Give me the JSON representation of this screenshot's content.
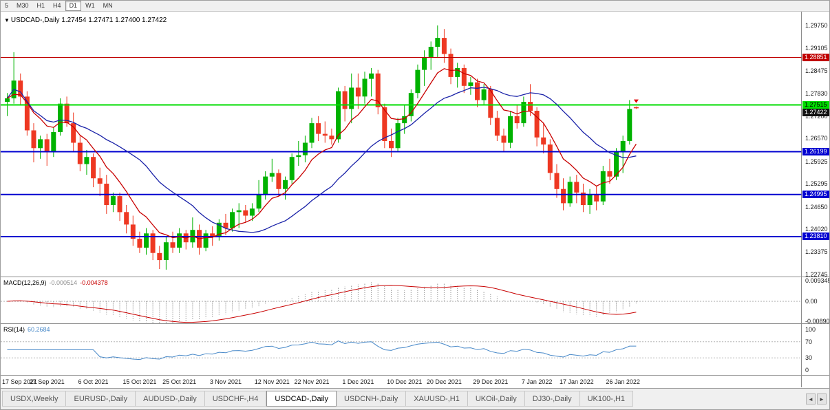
{
  "colors": {
    "candle_up": "#00b200",
    "candle_down": "#ee3822",
    "ma_fast": "#c80000",
    "ma_slow": "#1a22a8",
    "macd_hist": "#9a9a9a",
    "macd_signal": "#c80000",
    "rsi_line": "#4788c8",
    "level_red": "#c00000",
    "level_green": "#00dd00",
    "level_blue": "#0000d0",
    "bid_tag_bg": "#101010",
    "divider": "#8c8c8c",
    "dashed_level": "#b5b5b5"
  },
  "toolbar": {
    "buttons": [
      {
        "label": "5",
        "active": false
      },
      {
        "label": "M30",
        "active": false
      },
      {
        "label": "H1",
        "active": false
      },
      {
        "label": "H4",
        "active": false
      },
      {
        "label": "D1",
        "active": true
      },
      {
        "label": "W1",
        "active": false
      },
      {
        "label": "MN",
        "active": false
      }
    ]
  },
  "header": {
    "dropdown_glyph": "▼",
    "symbol": "USDCAD-,Daily",
    "ohlc": "1.27454 1.27471 1.27400 1.27422"
  },
  "macd_panel": {
    "title": "MACD(12,26,9)",
    "main_value": "-0.000514",
    "signal_value": "-0.004378",
    "scale": [
      "0.009345",
      "0.00",
      "-0.008900"
    ]
  },
  "rsi_panel": {
    "title": "RSI(14)",
    "value": "60.2684",
    "scale": [
      "100",
      "70",
      "30",
      "0"
    ],
    "levels": [
      70,
      30
    ]
  },
  "price_levels": [
    {
      "label": "1.28851",
      "price": 1.28851,
      "bg": "#c00000",
      "fg": "#ffffff",
      "line": true,
      "width": 1,
      "color": "#c00000"
    },
    {
      "label": "1.27515",
      "price": 1.27515,
      "bg": "#00dd00",
      "fg": "#000000",
      "line": true,
      "width": 2,
      "color": "#00dd00"
    },
    {
      "label": "1.27422",
      "price": 1.27422,
      "bg": "#101010",
      "fg": "#ffffff",
      "line": false,
      "width": 0,
      "color": "#101010"
    },
    {
      "label": "1.26199",
      "price": 1.26199,
      "bg": "#0000d0",
      "fg": "#ffffff",
      "line": true,
      "width": 2,
      "color": "#0000d0"
    },
    {
      "label": "1.24995",
      "price": 1.24995,
      "bg": "#0000d0",
      "fg": "#ffffff",
      "line": true,
      "width": 2,
      "color": "#0000d0"
    },
    {
      "label": "1.23810",
      "price": 1.2381,
      "bg": "#0000d0",
      "fg": "#ffffff",
      "line": true,
      "width": 2,
      "color": "#0000d0"
    }
  ],
  "price_scale_labels": [
    "1.29750",
    "1.29105",
    "1.28475",
    "1.27830",
    "1.27200",
    "1.26570",
    "1.25925",
    "1.25295",
    "1.24650",
    "1.24020",
    "1.23375",
    "1.22745"
  ],
  "tabs": [
    {
      "label": "USDX,Weekly",
      "active": false
    },
    {
      "label": "EURUSD-,Daily",
      "active": false
    },
    {
      "label": "AUDUSD-,Daily",
      "active": false
    },
    {
      "label": "USDCHF-,H4",
      "active": false
    },
    {
      "label": "USDCAD-,Daily",
      "active": true
    },
    {
      "label": "USDCNH-,Daily",
      "active": false
    },
    {
      "label": "XAUUSD-,H1",
      "active": false
    },
    {
      "label": "UKOil-,Daily",
      "active": false
    },
    {
      "label": "DJ30-,Daily",
      "active": false
    },
    {
      "label": "UK100-,H1",
      "active": false
    }
  ],
  "tab_scroll": {
    "left_glyph": "◄",
    "right_glyph": "►"
  },
  "chart_data": {
    "type": "candlestick",
    "title": "USDCAD-,Daily",
    "symbol": "USDCAD-",
    "timeframe": "Daily",
    "current_bar": {
      "open": 1.27454,
      "high": 1.27471,
      "low": 1.274,
      "close": 1.27422
    },
    "y_axis_labels": [
      1.2975,
      1.29105,
      1.28475,
      1.2783,
      1.272,
      1.2657,
      1.25925,
      1.25295,
      1.2465,
      1.2402,
      1.23375,
      1.22745
    ],
    "x_tick_labels": [
      "17 Sep 2021",
      "27 Sep 2021",
      "6 Oct 2021",
      "15 Oct 2021",
      "25 Oct 2021",
      "3 Nov 2021",
      "12 Nov 2021",
      "22 Nov 2021",
      "1 Dec 2021",
      "10 Dec 2021",
      "20 Dec 2021",
      "29 Dec 2021",
      "7 Jan 2022",
      "17 Jan 2022",
      "26 Jan 2022"
    ],
    "x_tick_indices": [
      0,
      6,
      13,
      20,
      26,
      33,
      40,
      46,
      53,
      60,
      66,
      73,
      80,
      86,
      93
    ],
    "candles": [
      [
        1.276,
        1.2785,
        1.272,
        1.277
      ],
      [
        1.277,
        1.29,
        1.2755,
        1.282
      ],
      [
        1.282,
        1.284,
        1.275,
        1.2775
      ],
      [
        1.2775,
        1.279,
        1.2665,
        1.268
      ],
      [
        1.268,
        1.27,
        1.259,
        1.263
      ],
      [
        1.263,
        1.2665,
        1.26,
        1.2655
      ],
      [
        1.2655,
        1.267,
        1.258,
        1.262
      ],
      [
        1.262,
        1.269,
        1.2605,
        1.2675
      ],
      [
        1.2675,
        1.277,
        1.2665,
        1.2755
      ],
      [
        1.2755,
        1.2775,
        1.269,
        1.27
      ],
      [
        1.27,
        1.273,
        1.262,
        1.2645
      ],
      [
        1.2645,
        1.2665,
        1.2565,
        1.2585
      ],
      [
        1.2585,
        1.2625,
        1.2555,
        1.2605
      ],
      [
        1.2605,
        1.2615,
        1.252,
        1.2545
      ],
      [
        1.2545,
        1.2575,
        1.2495,
        1.253
      ],
      [
        1.253,
        1.2555,
        1.2445,
        1.247
      ],
      [
        1.247,
        1.2505,
        1.245,
        1.2495
      ],
      [
        1.2495,
        1.2505,
        1.2425,
        1.245
      ],
      [
        1.245,
        1.247,
        1.239,
        1.2415
      ],
      [
        1.2415,
        1.244,
        1.2355,
        1.2375
      ],
      [
        1.2375,
        1.2395,
        1.2335,
        1.235
      ],
      [
        1.235,
        1.2405,
        1.233,
        1.239
      ],
      [
        1.239,
        1.24,
        1.2315,
        1.2335
      ],
      [
        1.2335,
        1.2355,
        1.229,
        1.2315
      ],
      [
        1.2315,
        1.238,
        1.2288,
        1.2365
      ],
      [
        1.2365,
        1.2395,
        1.2335,
        1.235
      ],
      [
        1.235,
        1.2405,
        1.2335,
        1.239
      ],
      [
        1.239,
        1.24,
        1.2345,
        1.2365
      ],
      [
        1.2365,
        1.2435,
        1.235,
        1.24
      ],
      [
        1.24,
        1.2415,
        1.233,
        1.235
      ],
      [
        1.235,
        1.24,
        1.234,
        1.239
      ],
      [
        1.239,
        1.241,
        1.2355,
        1.238
      ],
      [
        1.238,
        1.243,
        1.237,
        1.242
      ],
      [
        1.242,
        1.2445,
        1.2385,
        1.2405
      ],
      [
        1.2405,
        1.246,
        1.2395,
        1.245
      ],
      [
        1.245,
        1.2475,
        1.2405,
        1.2455
      ],
      [
        1.2455,
        1.247,
        1.242,
        1.244
      ],
      [
        1.244,
        1.2475,
        1.2425,
        1.246
      ],
      [
        1.246,
        1.254,
        1.245,
        1.25
      ],
      [
        1.25,
        1.2565,
        1.2485,
        1.255
      ],
      [
        1.255,
        1.26,
        1.2535,
        1.256
      ],
      [
        1.256,
        1.257,
        1.2495,
        1.2515
      ],
      [
        1.2515,
        1.255,
        1.2485,
        1.254
      ],
      [
        1.254,
        1.2615,
        1.253,
        1.2605
      ],
      [
        1.2605,
        1.265,
        1.258,
        1.261
      ],
      [
        1.261,
        1.2665,
        1.259,
        1.2645
      ],
      [
        1.2645,
        1.2715,
        1.263,
        1.27
      ],
      [
        1.27,
        1.272,
        1.265,
        1.267
      ],
      [
        1.267,
        1.2705,
        1.2645,
        1.2665
      ],
      [
        1.2665,
        1.2685,
        1.264,
        1.2655
      ],
      [
        1.2655,
        1.28,
        1.2645,
        1.279
      ],
      [
        1.279,
        1.2805,
        1.2705,
        1.274
      ],
      [
        1.274,
        1.284,
        1.27,
        1.28
      ],
      [
        1.28,
        1.284,
        1.274,
        1.2775
      ],
      [
        1.2775,
        1.2845,
        1.2755,
        1.2825
      ],
      [
        1.2825,
        1.2855,
        1.2775,
        1.284
      ],
      [
        1.284,
        1.285,
        1.2725,
        1.2745
      ],
      [
        1.2745,
        1.2755,
        1.263,
        1.265
      ],
      [
        1.265,
        1.2685,
        1.2605,
        1.263
      ],
      [
        1.263,
        1.2715,
        1.262,
        1.27
      ],
      [
        1.27,
        1.275,
        1.267,
        1.272
      ],
      [
        1.272,
        1.2795,
        1.2705,
        1.2785
      ],
      [
        1.2785,
        1.2865,
        1.277,
        1.285
      ],
      [
        1.285,
        1.2905,
        1.2805,
        1.2885
      ],
      [
        1.2885,
        1.293,
        1.285,
        1.2915
      ],
      [
        1.2915,
        1.2975,
        1.2885,
        1.294
      ],
      [
        1.294,
        1.2965,
        1.287,
        1.2895
      ],
      [
        1.2895,
        1.291,
        1.281,
        1.283
      ],
      [
        1.283,
        1.287,
        1.28,
        1.2855
      ],
      [
        1.2855,
        1.2865,
        1.2785,
        1.2805
      ],
      [
        1.2805,
        1.283,
        1.278,
        1.2815
      ],
      [
        1.2815,
        1.2825,
        1.2745,
        1.2765
      ],
      [
        1.2765,
        1.281,
        1.275,
        1.2795
      ],
      [
        1.2795,
        1.2805,
        1.2695,
        1.2715
      ],
      [
        1.2715,
        1.2735,
        1.265,
        1.2665
      ],
      [
        1.2665,
        1.2685,
        1.262,
        1.2645
      ],
      [
        1.2645,
        1.2735,
        1.263,
        1.272
      ],
      [
        1.272,
        1.275,
        1.2685,
        1.27
      ],
      [
        1.27,
        1.2775,
        1.269,
        1.276
      ],
      [
        1.276,
        1.281,
        1.272,
        1.2735
      ],
      [
        1.2735,
        1.2745,
        1.2635,
        1.266
      ],
      [
        1.266,
        1.27,
        1.2615,
        1.264
      ],
      [
        1.264,
        1.2655,
        1.254,
        1.256
      ],
      [
        1.256,
        1.2585,
        1.249,
        1.2515
      ],
      [
        1.2515,
        1.2545,
        1.2455,
        1.2475
      ],
      [
        1.2475,
        1.255,
        1.2465,
        1.2535
      ],
      [
        1.2535,
        1.2555,
        1.2475,
        1.2505
      ],
      [
        1.2505,
        1.253,
        1.245,
        1.247
      ],
      [
        1.247,
        1.2515,
        1.2445,
        1.25
      ],
      [
        1.25,
        1.2525,
        1.2455,
        1.248
      ],
      [
        1.248,
        1.258,
        1.247,
        1.2565
      ],
      [
        1.2565,
        1.26,
        1.253,
        1.255
      ],
      [
        1.255,
        1.263,
        1.254,
        1.262
      ],
      [
        1.262,
        1.2665,
        1.256,
        1.265
      ],
      [
        1.265,
        1.2765,
        1.264,
        1.274
      ],
      [
        1.27454,
        1.27471,
        1.274,
        1.27422
      ]
    ],
    "overlays": {
      "horizontal_lines": [
        {
          "price": 1.28851,
          "color": "#c00000",
          "width": 1
        },
        {
          "price": 1.27515,
          "color": "#00dd00",
          "width": 2
        },
        {
          "price": 1.26199,
          "color": "#0000d0",
          "width": 2
        },
        {
          "price": 1.24995,
          "color": "#0000d0",
          "width": 2
        },
        {
          "price": 1.2381,
          "color": "#0000d0",
          "width": 2
        }
      ],
      "moving_averages": [
        {
          "name": "ma-fast",
          "method": "ema",
          "period": 8,
          "color": "#c80000"
        },
        {
          "name": "ma-slow",
          "method": "sma",
          "period": 21,
          "color": "#1a22a8"
        }
      ],
      "marker": {
        "index": 95,
        "price": 1.2757,
        "shape": "triangle-down",
        "color": "#e00000"
      }
    },
    "indicators": [
      {
        "name": "MACD",
        "params": "12,26,9",
        "values": [
          -0.000514,
          -0.004378
        ],
        "scale": [
          0.009345,
          0.0,
          -0.0089
        ]
      },
      {
        "name": "RSI",
        "params": "14",
        "value": 60.2684,
        "scale": [
          100,
          70,
          30,
          0
        ],
        "levels": [
          70,
          30
        ]
      }
    ]
  }
}
